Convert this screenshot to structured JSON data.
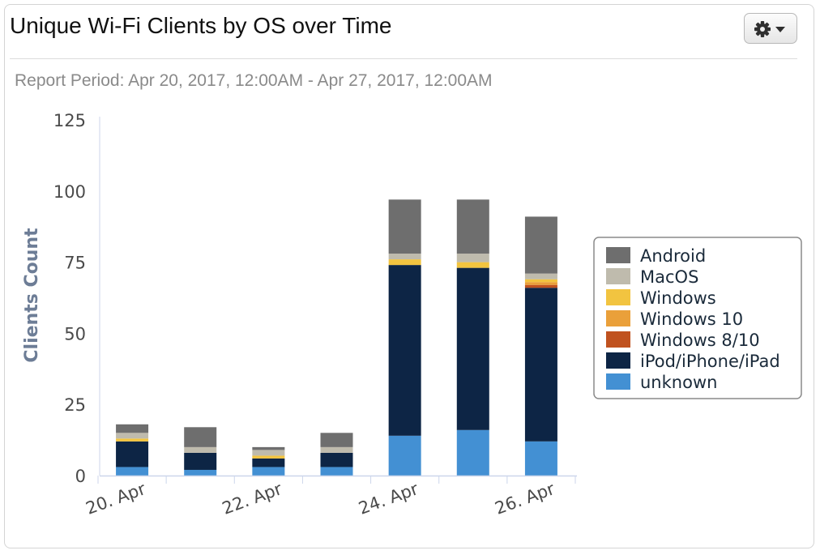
{
  "header": {
    "title": "Unique Wi-Fi Clients by OS over Time",
    "settings_icon": "gear-icon",
    "dropdown_icon": "caret-down-icon"
  },
  "report_period": "Report Period: Apr 20, 2017, 12:00AM - Apr 27, 2017, 12:00AM",
  "chart_data": {
    "type": "bar",
    "stacked": true,
    "ylabel": "Clients Count",
    "xlabel": "",
    "ylim": [
      0,
      125
    ],
    "yticks": [
      0,
      25,
      50,
      75,
      100,
      125
    ],
    "categories": [
      "Apr 20",
      "Apr 21",
      "Apr 22",
      "Apr 23",
      "Apr 24",
      "Apr 25",
      "Apr 26"
    ],
    "x_tick_labels": [
      {
        "index": 0,
        "label": "20. Apr"
      },
      {
        "index": 2,
        "label": "22. Apr"
      },
      {
        "index": 4,
        "label": "24. Apr"
      },
      {
        "index": 6,
        "label": "26. Apr"
      }
    ],
    "legend_position": "right",
    "series": [
      {
        "name": "unknown",
        "color": "#4390d3",
        "values": [
          3,
          2,
          3,
          3,
          14,
          16,
          12
        ]
      },
      {
        "name": "iPod/iPhone/iPad",
        "color": "#0d2545",
        "values": [
          9,
          6,
          3,
          5,
          60,
          57,
          54
        ]
      },
      {
        "name": "Windows 8/10",
        "color": "#c0521f",
        "values": [
          0,
          0,
          0,
          0,
          0,
          0,
          1
        ]
      },
      {
        "name": "Windows 10",
        "color": "#eaa03a",
        "values": [
          0,
          0,
          0,
          0,
          0,
          0,
          1
        ]
      },
      {
        "name": "Windows",
        "color": "#f2c440",
        "values": [
          1,
          0,
          1,
          0,
          2,
          2,
          1
        ]
      },
      {
        "name": "MacOS",
        "color": "#bfbbad",
        "values": [
          2,
          2,
          2,
          2,
          2,
          3,
          2
        ]
      },
      {
        "name": "Android",
        "color": "#6e6e6e",
        "values": [
          3,
          7,
          1,
          5,
          19,
          19,
          20
        ]
      }
    ],
    "legend_order": [
      "Android",
      "MacOS",
      "Windows",
      "Windows 10",
      "Windows 8/10",
      "iPod/iPhone/iPad",
      "unknown"
    ]
  }
}
